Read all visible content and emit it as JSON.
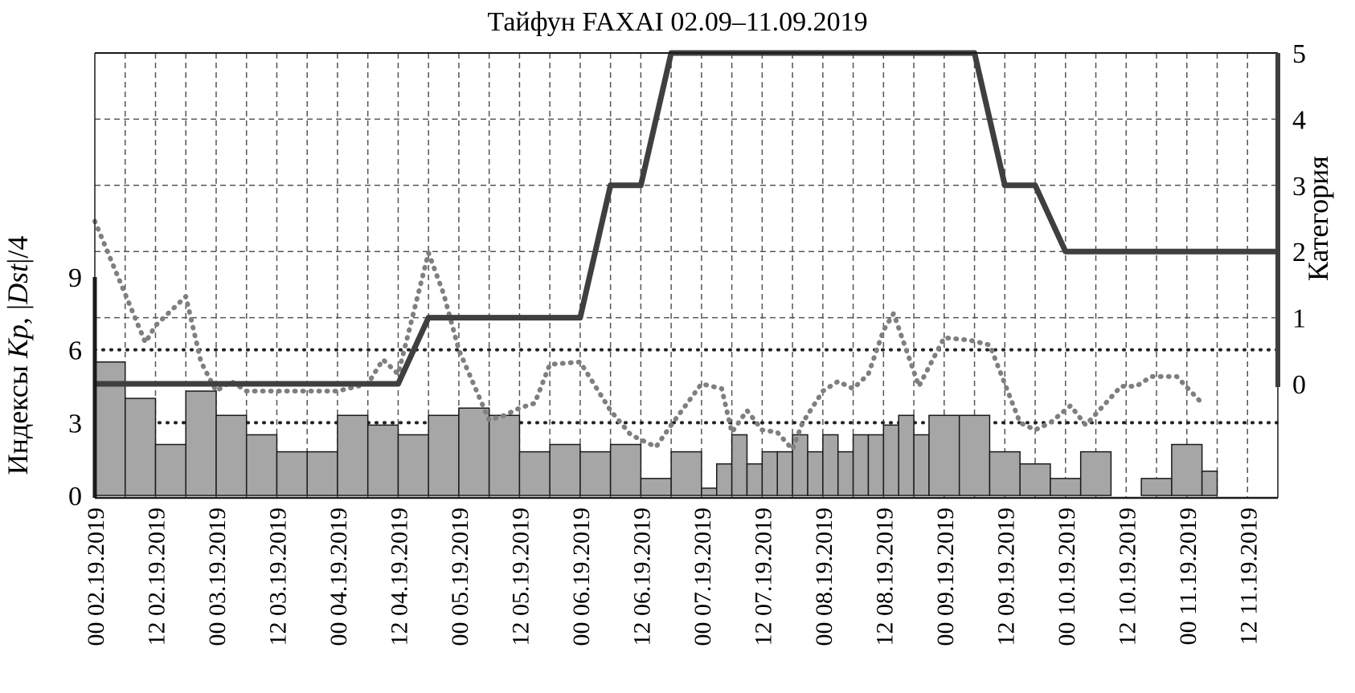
{
  "chart_data": {
    "type": "bar",
    "title": "Тайфун FAXAI 02.09–11.09.2019",
    "ylabel_parts": [
      "Индексы ",
      "Kp",
      ", |",
      "Dst",
      "|/4"
    ],
    "y2label": "Категория",
    "ylim": [
      0,
      9
    ],
    "yticks": [
      0,
      3,
      6,
      9
    ],
    "y2lim": [
      0,
      5
    ],
    "y2ticks": [
      0,
      1,
      2,
      3,
      4,
      5
    ],
    "xlim_hours": [
      0,
      234
    ],
    "xtick_labels": [
      "00 02.19.2019",
      "12 02.19.2019",
      "00 03.19.2019",
      "12 03.19.2019",
      "00 04.19.2019",
      "12 04.19.2019",
      "00 05.19.2019",
      "12 05.19.2019",
      "00 06.19.2019",
      "12 06.19.2019",
      "00 07.19.2019",
      "12 07.19.2019",
      "00 08.19.2019",
      "12 08.19.2019",
      "00 09.19.2019",
      "12 09.19.2019",
      "00 10.19.2019",
      "12 10.19.2019",
      "00 11.19.2019",
      "12 11.19.2019"
    ],
    "grid": true,
    "reference_lines": [
      3,
      6
    ],
    "series": [
      {
        "kind": "bar",
        "values": [
          5.5,
          4.0,
          2.1,
          4.3,
          3.3,
          2.5,
          1.8,
          1.8,
          3.3,
          2.9,
          2.5,
          3.3,
          3.6,
          3.3,
          1.8,
          2.1,
          1.8,
          2.1,
          0.7,
          1.8,
          0.3,
          1.3,
          2.5,
          1.3,
          1.8,
          1.8,
          2.5,
          1.8,
          2.5,
          1.8,
          2.5,
          2.5,
          2.9,
          3.3,
          2.5,
          3.3,
          3.3,
          1.8,
          1.3,
          0.7,
          1.8,
          0,
          0.7,
          2.1,
          1.0
        ],
        "bar_hours": [
          [
            0,
            6
          ],
          [
            6,
            12
          ],
          [
            12,
            18
          ],
          [
            18,
            24
          ],
          [
            24,
            30
          ],
          [
            30,
            36
          ],
          [
            36,
            42
          ],
          [
            42,
            48
          ],
          [
            48,
            54
          ],
          [
            54,
            60
          ],
          [
            60,
            66
          ],
          [
            66,
            72
          ],
          [
            72,
            78
          ],
          [
            78,
            84
          ],
          [
            84,
            90
          ],
          [
            90,
            96
          ],
          [
            96,
            102
          ],
          [
            102,
            108
          ],
          [
            108,
            114
          ],
          [
            114,
            120
          ],
          [
            120,
            123
          ],
          [
            123,
            126
          ],
          [
            126,
            129
          ],
          [
            129,
            132
          ],
          [
            132,
            135
          ],
          [
            135,
            138
          ],
          [
            138,
            141
          ],
          [
            141,
            144
          ],
          [
            144,
            147
          ],
          [
            147,
            150
          ],
          [
            150,
            153
          ],
          [
            153,
            156
          ],
          [
            156,
            159
          ],
          [
            159,
            162
          ],
          [
            162,
            165
          ],
          [
            165,
            171
          ],
          [
            171,
            177
          ],
          [
            177,
            183
          ],
          [
            183,
            189
          ],
          [
            189,
            195
          ],
          [
            195,
            201
          ],
          [
            201,
            207
          ],
          [
            207,
            213
          ],
          [
            213,
            219
          ],
          [
            219,
            222
          ]
        ]
      },
      {
        "kind": "dotted-line",
        "x_hours": [
          0,
          5,
          10,
          12,
          18,
          21,
          24,
          27,
          30,
          36,
          42,
          48,
          54,
          57,
          60,
          63,
          66,
          69,
          72,
          78,
          81,
          84,
          87,
          90,
          96,
          102,
          106,
          111,
          114,
          120,
          124,
          126,
          129,
          132,
          135,
          138,
          140,
          144,
          147,
          150,
          153,
          156,
          158,
          163,
          166,
          168,
          173,
          177,
          180,
          183,
          186,
          189,
          193,
          196,
          203,
          206,
          209,
          214,
          219
        ],
        "values": [
          11.3,
          8.8,
          6.3,
          7.0,
          8.2,
          5.5,
          4.3,
          4.7,
          4.3,
          4.3,
          4.3,
          4.3,
          4.6,
          5.6,
          5.0,
          7.5,
          10.0,
          8.3,
          6.0,
          3.1,
          3.3,
          3.6,
          3.8,
          5.4,
          5.5,
          3.5,
          2.5,
          2.0,
          2.9,
          4.6,
          4.4,
          2.6,
          3.5,
          2.7,
          2.6,
          1.9,
          3.0,
          4.3,
          4.7,
          4.4,
          5.0,
          6.8,
          7.5,
          4.5,
          5.7,
          6.5,
          6.4,
          6.2,
          4.6,
          3.0,
          2.7,
          3.0,
          3.7,
          2.9,
          4.5,
          4.5,
          4.9,
          4.9,
          3.8
        ]
      },
      {
        "kind": "category-line",
        "x_hours": [
          0,
          60,
          66,
          96,
          102,
          108,
          114,
          120,
          174,
          180,
          186,
          192,
          234
        ],
        "values": [
          0,
          0,
          1,
          1,
          3,
          3,
          5,
          5,
          5,
          3,
          3,
          2,
          2
        ]
      }
    ]
  }
}
